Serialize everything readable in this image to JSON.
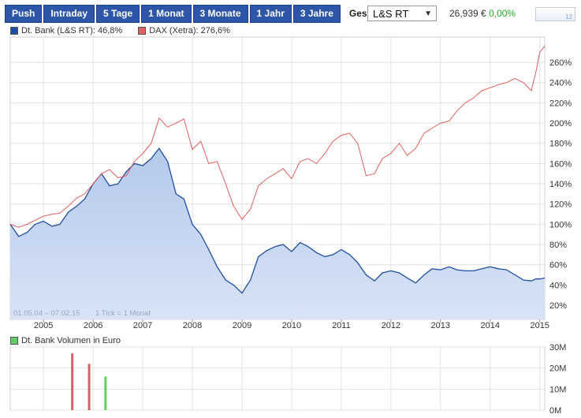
{
  "tabs": [
    {
      "label": "Push",
      "active": false
    },
    {
      "label": "Intraday",
      "active": false
    },
    {
      "label": "5 Tage",
      "active": false
    },
    {
      "label": "1 Monat",
      "active": false
    },
    {
      "label": "3 Monate",
      "active": false
    },
    {
      "label": "1 Jahr",
      "active": false
    },
    {
      "label": "3 Jahre",
      "active": false
    },
    {
      "label": "Gesamt",
      "active": true
    }
  ],
  "exchange": {
    "selected": "L&S RT"
  },
  "quote": {
    "price": "26,939 €",
    "change": "0,00%"
  },
  "spark": {
    "label": "12"
  },
  "legend": [
    {
      "label": "Dt. Bank (L&S RT): 46,8%",
      "color": "#1f4fa0"
    },
    {
      "label": "DAX (Xetra): 276,6%",
      "color": "#e06060"
    }
  ],
  "range_note": "01.05.04 – 07.02.15",
  "tick_note": "1 Tick = 1 Monat",
  "volume_legend": {
    "label": "Dt. Bank Volumen in Euro",
    "color": "#66cc66"
  },
  "chart_data": [
    {
      "type": "line",
      "x_ticks": [
        "2005",
        "2006",
        "2007",
        "2008",
        "2009",
        "2010",
        "2011",
        "2012",
        "2013",
        "2014",
        "2015"
      ],
      "y_ticks": [
        "20%",
        "40%",
        "60%",
        "80%",
        "100%",
        "120%",
        "140%",
        "160%",
        "180%",
        "200%",
        "220%",
        "240%",
        "260%"
      ],
      "xlim": [
        2004.33,
        2015.1
      ],
      "ylim": [
        6,
        285
      ],
      "grid": true,
      "legend_position": "top-left",
      "series": [
        {
          "name": "DAX (Xetra): 276,6%",
          "color": "#e06060",
          "fill": false,
          "x": [
            2004.33,
            2004.5,
            2004.67,
            2004.83,
            2005.0,
            2005.17,
            2005.33,
            2005.5,
            2005.67,
            2005.83,
            2006.0,
            2006.17,
            2006.33,
            2006.5,
            2006.67,
            2006.83,
            2007.0,
            2007.17,
            2007.33,
            2007.5,
            2007.67,
            2007.83,
            2008.0,
            2008.17,
            2008.33,
            2008.5,
            2008.67,
            2008.83,
            2009.0,
            2009.17,
            2009.33,
            2009.5,
            2009.67,
            2009.83,
            2010.0,
            2010.17,
            2010.33,
            2010.5,
            2010.67,
            2010.83,
            2011.0,
            2011.17,
            2011.33,
            2011.5,
            2011.67,
            2011.83,
            2012.0,
            2012.17,
            2012.33,
            2012.5,
            2012.67,
            2012.83,
            2013.0,
            2013.17,
            2013.33,
            2013.5,
            2013.67,
            2013.83,
            2014.0,
            2014.17,
            2014.33,
            2014.5,
            2014.67,
            2014.83,
            2014.92,
            2015.0,
            2015.1
          ],
          "y": [
            100,
            97,
            100,
            104,
            108,
            110,
            111,
            118,
            126,
            130,
            140,
            150,
            154,
            146,
            148,
            162,
            170,
            180,
            205,
            196,
            200,
            204,
            174,
            182,
            160,
            162,
            140,
            118,
            105,
            115,
            138,
            145,
            150,
            155,
            145,
            162,
            165,
            160,
            170,
            182,
            188,
            190,
            180,
            148,
            150,
            165,
            170,
            180,
            168,
            175,
            190,
            195,
            200,
            202,
            212,
            220,
            225,
            232,
            235,
            238,
            240,
            244,
            240,
            232,
            250,
            270,
            276
          ]
        },
        {
          "name": "Dt. Bank (L&S RT): 46,8%",
          "color": "#1f4fa0",
          "fill": true,
          "x": [
            2004.33,
            2004.5,
            2004.67,
            2004.83,
            2005.0,
            2005.17,
            2005.33,
            2005.5,
            2005.67,
            2005.83,
            2006.0,
            2006.17,
            2006.33,
            2006.5,
            2006.67,
            2006.83,
            2007.0,
            2007.17,
            2007.33,
            2007.5,
            2007.67,
            2007.83,
            2008.0,
            2008.17,
            2008.33,
            2008.5,
            2008.67,
            2008.83,
            2009.0,
            2009.17,
            2009.33,
            2009.5,
            2009.67,
            2009.83,
            2010.0,
            2010.17,
            2010.33,
            2010.5,
            2010.67,
            2010.83,
            2011.0,
            2011.17,
            2011.33,
            2011.5,
            2011.67,
            2011.83,
            2012.0,
            2012.17,
            2012.33,
            2012.5,
            2012.67,
            2012.83,
            2013.0,
            2013.17,
            2013.33,
            2013.5,
            2013.67,
            2013.83,
            2014.0,
            2014.17,
            2014.33,
            2014.5,
            2014.67,
            2014.83,
            2014.92,
            2015.0,
            2015.1
          ],
          "y": [
            100,
            88,
            92,
            100,
            103,
            98,
            100,
            112,
            118,
            125,
            140,
            150,
            138,
            140,
            152,
            160,
            158,
            165,
            175,
            162,
            130,
            125,
            100,
            90,
            75,
            58,
            45,
            40,
            32,
            45,
            68,
            74,
            78,
            80,
            73,
            82,
            78,
            72,
            68,
            70,
            75,
            70,
            62,
            50,
            44,
            52,
            54,
            52,
            47,
            42,
            50,
            56,
            55,
            58,
            55,
            54,
            54,
            56,
            58,
            56,
            55,
            50,
            45,
            44,
            46,
            46,
            47
          ]
        }
      ]
    },
    {
      "type": "bar",
      "title": "Dt. Bank Volumen in Euro",
      "y_ticks": [
        "0M",
        "10M",
        "20M",
        "30M"
      ],
      "ylim": [
        0,
        30
      ],
      "bars": [
        {
          "x": 2005.58,
          "value": 27,
          "color": "#cc6666"
        },
        {
          "x": 2005.92,
          "value": 22,
          "color": "#cc6666"
        },
        {
          "x": 2006.25,
          "value": 16,
          "color": "#66cc66"
        }
      ]
    }
  ]
}
